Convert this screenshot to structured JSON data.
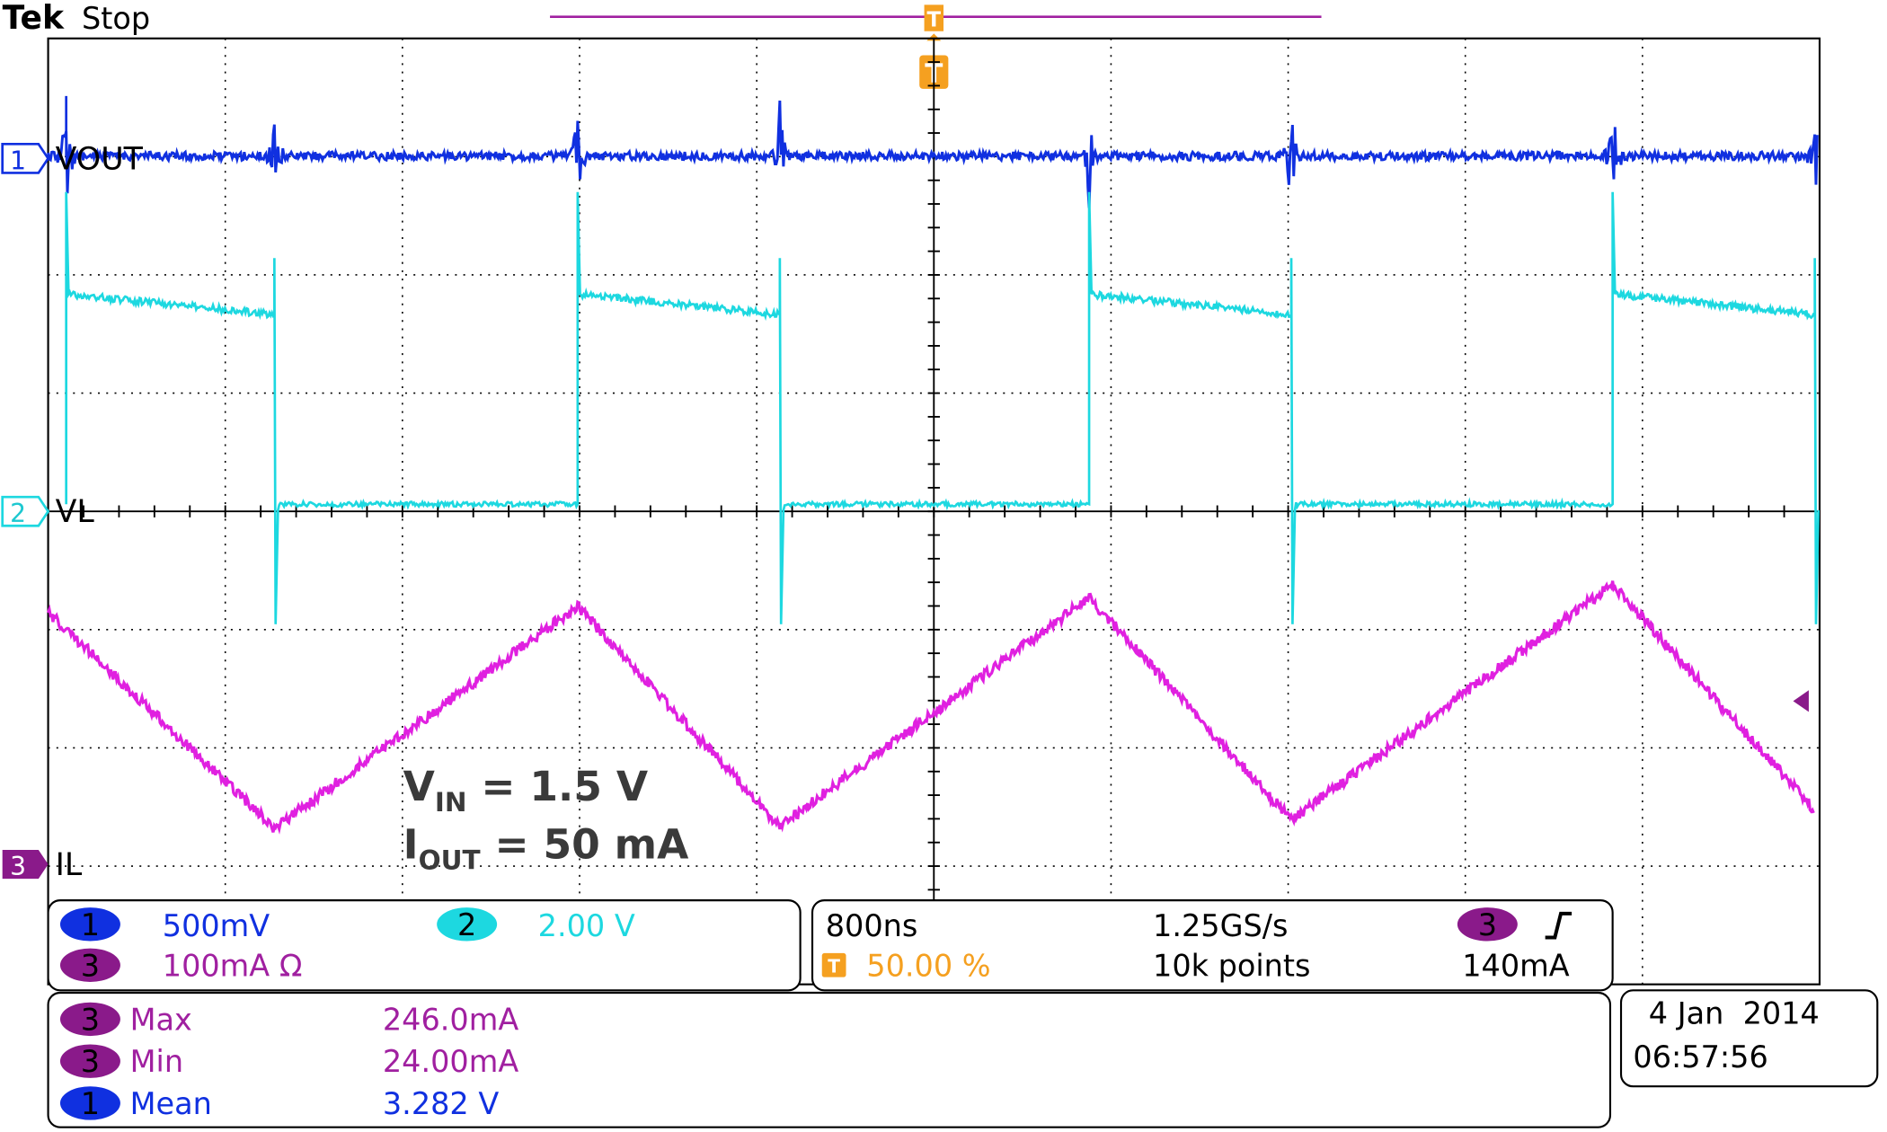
{
  "header": {
    "brand": "Tek",
    "status": "Stop"
  },
  "trigger": {
    "marker": "T"
  },
  "channels": [
    {
      "number": "1",
      "label": "VOUT"
    },
    {
      "number": "2",
      "label": "VL"
    },
    {
      "number": "3",
      "label": "IL"
    }
  ],
  "annotation": {
    "vin": {
      "symbol": "V",
      "subscript": "IN",
      "text": " = 1.5 V"
    },
    "iout": {
      "symbol": "I",
      "subscript": "OUT",
      "text": " = 50 mA"
    }
  },
  "vertical": {
    "ch1": {
      "number": "1",
      "scale": "500mV"
    },
    "ch2": {
      "number": "2",
      "scale": "2.00 V"
    },
    "ch3": {
      "number": "3",
      "scale": "100mA Ω"
    }
  },
  "horizontal": {
    "timebase": "800ns",
    "trigger_position": "50.00 %",
    "sample_rate": "1.25GS/s",
    "record_length": "10k points",
    "trigger_source": "3",
    "trigger_level": "140mA"
  },
  "measurements": [
    {
      "channel": "3",
      "name": "Max",
      "value": "246.0mA"
    },
    {
      "channel": "3",
      "name": "Min",
      "value": "24.00mA"
    },
    {
      "channel": "1",
      "name": "Mean",
      "value": "3.282 V"
    }
  ],
  "timestamp": {
    "date": "4 Jan  2014",
    "time": "06:57:56"
  }
}
